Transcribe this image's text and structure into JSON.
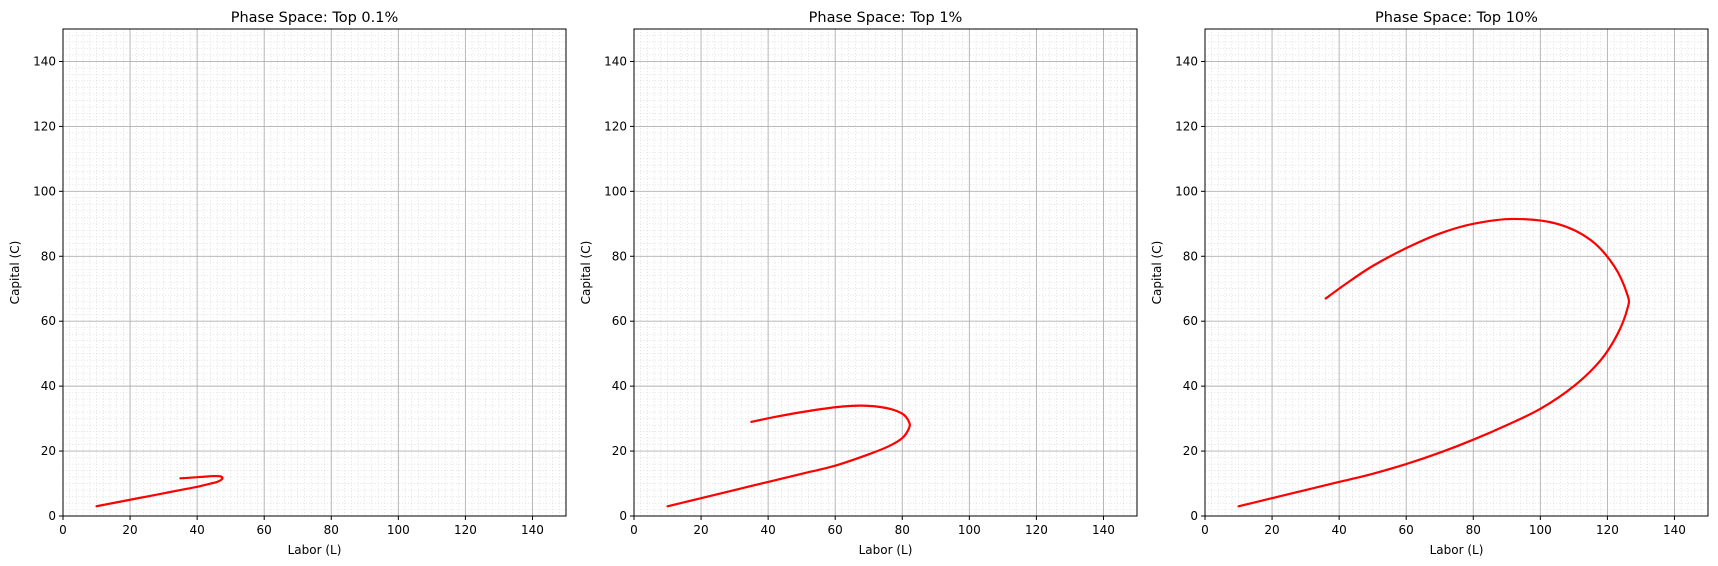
{
  "chart_data": [
    {
      "type": "line",
      "title": "Phase Space: Top 0.1%",
      "xlabel": "Labor (L)",
      "ylabel": "Capital (C)",
      "xlim": [
        0,
        150
      ],
      "ylim": [
        0,
        150
      ],
      "xticks": [
        "0",
        "20",
        "40",
        "60",
        "80",
        "100",
        "120",
        "140"
      ],
      "yticks": [
        "0",
        "20",
        "40",
        "60",
        "80",
        "100",
        "120",
        "140"
      ],
      "grid": "major and minor",
      "series": [
        {
          "color": "#ff0000",
          "x": [
            10,
            15,
            20,
            25,
            30,
            35,
            40,
            44,
            46,
            47.5,
            47,
            45,
            42,
            38,
            35
          ],
          "y": [
            3,
            4,
            5,
            6,
            7,
            8,
            9,
            10,
            10.5,
            11.5,
            12.2,
            12.3,
            12.1,
            11.8,
            11.6
          ]
        }
      ]
    },
    {
      "type": "line",
      "title": "Phase Space: Top 1%",
      "xlabel": "Labor (L)",
      "ylabel": "Capital (C)",
      "xlim": [
        0,
        150
      ],
      "ylim": [
        0,
        150
      ],
      "xticks": [
        "0",
        "20",
        "40",
        "60",
        "80",
        "100",
        "120",
        "140"
      ],
      "yticks": [
        "0",
        "20",
        "40",
        "60",
        "80",
        "100",
        "120",
        "140"
      ],
      "grid": "major and minor",
      "series": [
        {
          "color": "#ff0000",
          "x": [
            10,
            20,
            30,
            40,
            50,
            60,
            70,
            76,
            80,
            82,
            82,
            80,
            75,
            68,
            60,
            50,
            42,
            35
          ],
          "y": [
            3,
            5.5,
            8,
            10.5,
            13,
            15.5,
            19,
            21.5,
            24,
            27,
            29,
            31.5,
            33.3,
            34,
            33.5,
            32,
            30.5,
            29
          ]
        }
      ]
    },
    {
      "type": "line",
      "title": "Phase Space: Top 10%",
      "xlabel": "Labor (L)",
      "ylabel": "Capital (C)",
      "xlim": [
        0,
        150
      ],
      "ylim": [
        0,
        150
      ],
      "xticks": [
        "0",
        "20",
        "40",
        "60",
        "80",
        "100",
        "120",
        "140"
      ],
      "yticks": [
        "0",
        "20",
        "40",
        "60",
        "80",
        "100",
        "120",
        "140"
      ],
      "grid": "major and minor",
      "series": [
        {
          "color": "#ff0000",
          "x": [
            10,
            20,
            30,
            40,
            50,
            60,
            70,
            80,
            90,
            100,
            110,
            118,
            123,
            126,
            126,
            122,
            115,
            105,
            92,
            80,
            70,
            60,
            50,
            42,
            36
          ],
          "y": [
            3,
            5.5,
            8,
            10.5,
            13,
            16,
            19.5,
            23.5,
            28,
            33,
            40,
            48,
            56,
            64,
            68,
            77,
            85,
            90,
            91.5,
            90,
            87,
            82.5,
            77,
            71.5,
            67
          ]
        }
      ]
    }
  ]
}
